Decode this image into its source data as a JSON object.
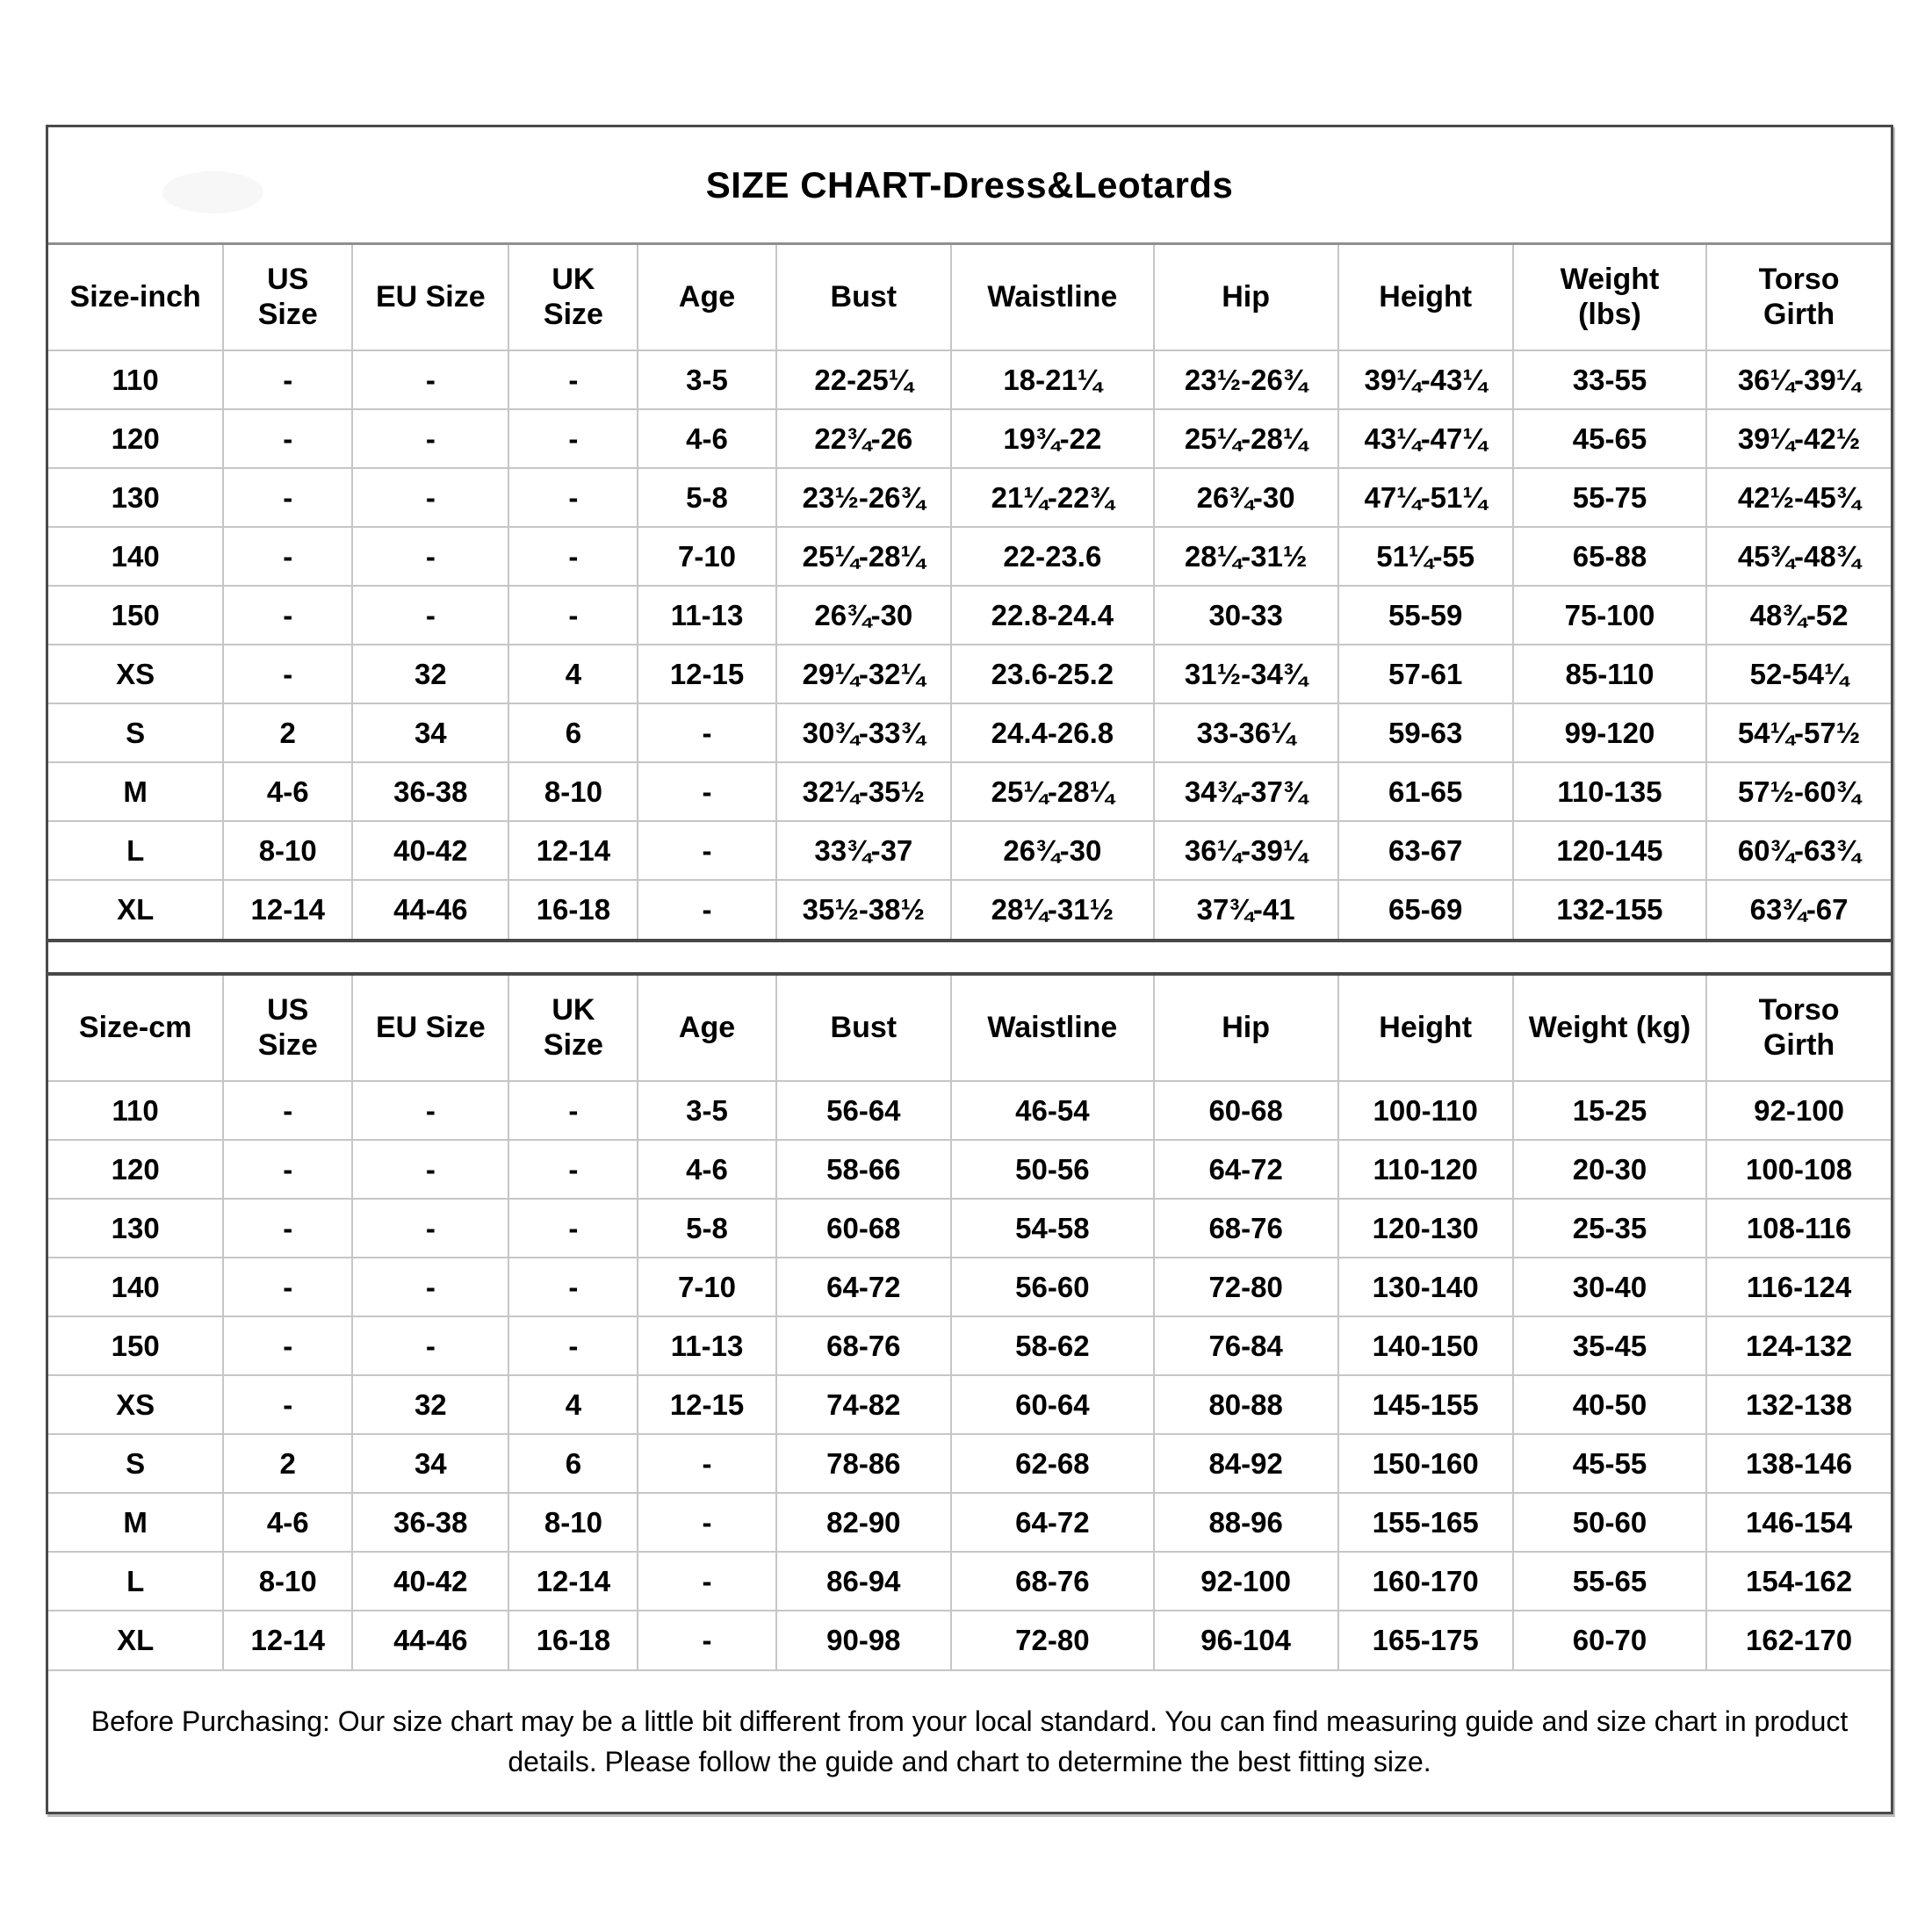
{
  "page_title": "SIZE CHART-Dress&Leotards",
  "colors": {
    "background": "#ffffff",
    "text": "#000000",
    "grid_line": "#c6c6c6",
    "outer_border": "#4a4a4a"
  },
  "tables": [
    {
      "unit_label": "Size-inch",
      "headers": [
        "Size-inch",
        "US\nSize",
        "EU Size",
        "UK\nSize",
        "Age",
        "Bust",
        "Waistline",
        "Hip",
        "Height",
        "Weight\n(lbs)",
        "Torso\nGirth"
      ],
      "rows": [
        [
          "110",
          "-",
          "-",
          "-",
          "3-5",
          "22-25¼",
          "18-21¼",
          "23½-26¾",
          "39¼-43¼",
          "33-55",
          "36¼-39¼"
        ],
        [
          "120",
          "-",
          "-",
          "-",
          "4-6",
          "22¾-26",
          "19¾-22",
          "25¼-28¼",
          "43¼-47¼",
          "45-65",
          "39¼-42½"
        ],
        [
          "130",
          "-",
          "-",
          "-",
          "5-8",
          "23½-26¾",
          "21¼-22¾",
          "26¾-30",
          "47¼-51¼",
          "55-75",
          "42½-45¾"
        ],
        [
          "140",
          "-",
          "-",
          "-",
          "7-10",
          "25¼-28¼",
          "22-23.6",
          "28¼-31½",
          "51¼-55",
          "65-88",
          "45¾-48¾"
        ],
        [
          "150",
          "-",
          "-",
          "-",
          "11-13",
          "26¾-30",
          "22.8-24.4",
          "30-33",
          "55-59",
          "75-100",
          "48¾-52"
        ],
        [
          "XS",
          "-",
          "32",
          "4",
          "12-15",
          "29¼-32¼",
          "23.6-25.2",
          "31½-34¾",
          "57-61",
          "85-110",
          "52-54¼"
        ],
        [
          "S",
          "2",
          "34",
          "6",
          "-",
          "30¾-33¾",
          "24.4-26.8",
          "33-36¼",
          "59-63",
          "99-120",
          "54¼-57½"
        ],
        [
          "M",
          "4-6",
          "36-38",
          "8-10",
          "-",
          "32¼-35½",
          "25¼-28¼",
          "34¾-37¾",
          "61-65",
          "110-135",
          "57½-60¾"
        ],
        [
          "L",
          "8-10",
          "40-42",
          "12-14",
          "-",
          "33¾-37",
          "26¾-30",
          "36¼-39¼",
          "63-67",
          "120-145",
          "60¾-63¾"
        ],
        [
          "XL",
          "12-14",
          "44-46",
          "16-18",
          "-",
          "35½-38½",
          "28¼-31½",
          "37¾-41",
          "65-69",
          "132-155",
          "63¾-67"
        ]
      ]
    },
    {
      "unit_label": "Size-cm",
      "headers": [
        "Size-cm",
        "US\nSize",
        "EU Size",
        "UK\nSize",
        "Age",
        "Bust",
        "Waistline",
        "Hip",
        "Height",
        "Weight (kg)",
        "Torso\nGirth"
      ],
      "rows": [
        [
          "110",
          "-",
          "-",
          "-",
          "3-5",
          "56-64",
          "46-54",
          "60-68",
          "100-110",
          "15-25",
          "92-100"
        ],
        [
          "120",
          "-",
          "-",
          "-",
          "4-6",
          "58-66",
          "50-56",
          "64-72",
          "110-120",
          "20-30",
          "100-108"
        ],
        [
          "130",
          "-",
          "-",
          "-",
          "5-8",
          "60-68",
          "54-58",
          "68-76",
          "120-130",
          "25-35",
          "108-116"
        ],
        [
          "140",
          "-",
          "-",
          "-",
          "7-10",
          "64-72",
          "56-60",
          "72-80",
          "130-140",
          "30-40",
          "116-124"
        ],
        [
          "150",
          "-",
          "-",
          "-",
          "11-13",
          "68-76",
          "58-62",
          "76-84",
          "140-150",
          "35-45",
          "124-132"
        ],
        [
          "XS",
          "-",
          "32",
          "4",
          "12-15",
          "74-82",
          "60-64",
          "80-88",
          "145-155",
          "40-50",
          "132-138"
        ],
        [
          "S",
          "2",
          "34",
          "6",
          "-",
          "78-86",
          "62-68",
          "84-92",
          "150-160",
          "45-55",
          "138-146"
        ],
        [
          "M",
          "4-6",
          "36-38",
          "8-10",
          "-",
          "82-90",
          "64-72",
          "88-96",
          "155-165",
          "50-60",
          "146-154"
        ],
        [
          "L",
          "8-10",
          "40-42",
          "12-14",
          "-",
          "86-94",
          "68-76",
          "92-100",
          "160-170",
          "55-65",
          "154-162"
        ],
        [
          "XL",
          "12-14",
          "44-46",
          "16-18",
          "-",
          "90-98",
          "72-80",
          "96-104",
          "165-175",
          "60-70",
          "162-170"
        ]
      ]
    }
  ],
  "column_widths_percent": [
    9.5,
    7.0,
    8.5,
    7.0,
    7.5,
    9.5,
    11.0,
    10.0,
    9.5,
    10.5,
    10.0
  ],
  "note": "Before Purchasing: Our size chart may be a little bit different from your local standard. You can find measuring guide and size chart in product details. Please follow the guide and chart to determine the best fitting size."
}
